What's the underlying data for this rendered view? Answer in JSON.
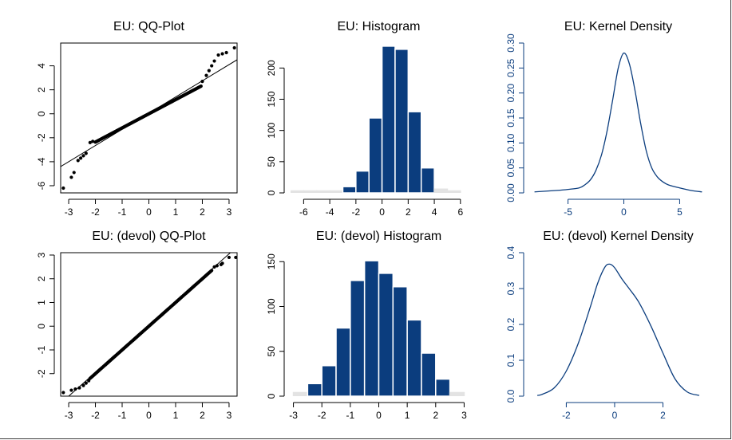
{
  "colors": {
    "navy": "#0b3d7e",
    "black": "#000000",
    "tail_bar": "#e3e3e3"
  },
  "chart_data": [
    {
      "id": "qq1",
      "type": "scatter",
      "title": "EU: QQ-Plot",
      "xlim": [
        -3.3,
        3.3
      ],
      "ylim": [
        -6.6,
        5.9
      ],
      "xticks": [
        -3,
        -2,
        -1,
        0,
        1,
        2,
        3
      ],
      "yticks": [
        -6,
        -4,
        -2,
        0,
        2,
        4
      ],
      "reference_line": {
        "intercept": 0.05,
        "slope": 1.35
      },
      "points": [
        [
          -3.2,
          -6.2
        ],
        [
          -2.9,
          -5.3
        ],
        [
          -2.8,
          -4.9
        ],
        [
          -2.65,
          -3.9
        ],
        [
          -2.55,
          -3.7
        ],
        [
          -2.45,
          -3.5
        ],
        [
          -2.35,
          -3.3
        ],
        [
          -2.2,
          -2.4
        ],
        [
          -2.1,
          -2.3
        ],
        [
          2.0,
          2.7
        ],
        [
          2.15,
          3.2
        ],
        [
          2.25,
          3.6
        ],
        [
          2.35,
          4.0
        ],
        [
          2.45,
          4.4
        ],
        [
          2.6,
          4.9
        ],
        [
          2.75,
          5.0
        ],
        [
          2.9,
          5.1
        ],
        [
          3.2,
          5.5
        ]
      ],
      "dense_band": {
        "from": -2.0,
        "to": 1.95,
        "intercept": 0.0,
        "slope": 1.18
      }
    },
    {
      "id": "hist1",
      "type": "bar",
      "title": "EU: Histogram",
      "xlim": [
        -7,
        6.5
      ],
      "ylim": [
        0,
        240
      ],
      "xticks": [
        -6,
        -4,
        -2,
        0,
        2,
        4,
        6
      ],
      "yticks": [
        0,
        50,
        100,
        150,
        200
      ],
      "bin_edges": [
        -7,
        -6,
        -5,
        -4,
        -3,
        -2,
        -1,
        0,
        1,
        2,
        3,
        4,
        5,
        6
      ],
      "counts": [
        0,
        0,
        0,
        1,
        10,
        35,
        120,
        235,
        230,
        130,
        40,
        6,
        1
      ],
      "tail_bins": [
        0,
        1,
        2,
        3,
        11,
        12
      ]
    },
    {
      "id": "kde1",
      "type": "line",
      "title": "EU: Kernel Density",
      "xlim": [
        -8.4,
        7.4
      ],
      "ylim": [
        0,
        0.3
      ],
      "xticks": [
        -5,
        0,
        5
      ],
      "yticks": [
        0,
        0.05,
        0.1,
        0.15,
        0.2,
        0.25,
        0.3
      ],
      "ytick_labels": [
        "0.00",
        "0.05",
        "0.10",
        "0.15",
        "0.20",
        "0.25",
        "0.30"
      ],
      "x": [
        -8,
        -6,
        -5,
        -4,
        -3.5,
        -3,
        -2.5,
        -2,
        -1.5,
        -1,
        -0.5,
        0,
        0.5,
        1,
        1.5,
        2,
        2.5,
        3,
        3.5,
        4,
        5,
        6,
        7
      ],
      "y": [
        0.002,
        0.005,
        0.007,
        0.01,
        0.016,
        0.026,
        0.045,
        0.076,
        0.124,
        0.186,
        0.25,
        0.28,
        0.258,
        0.205,
        0.14,
        0.085,
        0.05,
        0.032,
        0.022,
        0.016,
        0.01,
        0.005,
        0.002
      ]
    },
    {
      "id": "qq2",
      "type": "scatter",
      "title": "EU: (devol) QQ-Plot",
      "xlim": [
        -3.3,
        3.3
      ],
      "ylim": [
        -2.95,
        3.1
      ],
      "xticks": [
        -3,
        -2,
        -1,
        0,
        1,
        2,
        3
      ],
      "yticks": [
        -2,
        -1,
        0,
        1,
        2,
        3
      ],
      "reference_line": {
        "intercept": 0.05,
        "slope": 1.0
      },
      "points": [
        [
          -3.2,
          -2.8
        ],
        [
          -2.9,
          -2.7
        ],
        [
          -2.75,
          -2.65
        ],
        [
          -2.6,
          -2.6
        ],
        [
          -2.45,
          -2.5
        ],
        [
          -2.35,
          -2.4
        ],
        [
          -2.25,
          -2.3
        ],
        [
          2.45,
          2.5
        ],
        [
          2.55,
          2.55
        ],
        [
          2.7,
          2.6
        ],
        [
          2.75,
          2.65
        ],
        [
          3.0,
          2.9
        ],
        [
          3.25,
          2.9
        ]
      ],
      "dense_band": {
        "from": -2.2,
        "to": 2.35,
        "intercept": 0.0,
        "slope": 1.0
      }
    },
    {
      "id": "hist2",
      "type": "bar",
      "title": "EU: (devol) Histogram",
      "xlim": [
        -3.1,
        3.1
      ],
      "ylim": [
        0,
        160
      ],
      "xticks": [
        -3,
        -2,
        -1,
        0,
        1,
        2,
        3
      ],
      "yticks": [
        0,
        50,
        100,
        150
      ],
      "bin_edges": [
        -3,
        -2.5,
        -2,
        -1.5,
        -1,
        -0.5,
        0,
        0.5,
        1,
        1.5,
        2,
        2.5,
        3
      ],
      "counts": [
        4,
        14,
        34,
        76,
        129,
        151,
        137,
        122,
        85,
        48,
        19,
        4
      ],
      "tail_bins": [
        0,
        11
      ]
    },
    {
      "id": "kde2",
      "type": "line",
      "title": "EU: (devol) Kernel Density",
      "xlim": [
        -3.5,
        3.8
      ],
      "ylim": [
        0,
        0.4
      ],
      "xticks": [
        -2,
        0,
        2
      ],
      "yticks": [
        0,
        0.1,
        0.2,
        0.3,
        0.4
      ],
      "ytick_labels": [
        "0.0",
        "0.1",
        "0.2",
        "0.3",
        "0.4"
      ],
      "x": [
        -3.2,
        -3,
        -2.5,
        -2,
        -1.5,
        -1,
        -0.7,
        -0.4,
        -0.2,
        0,
        0.3,
        0.6,
        1,
        1.5,
        2,
        2.5,
        3,
        3.5
      ],
      "y": [
        0.002,
        0.005,
        0.023,
        0.07,
        0.148,
        0.25,
        0.315,
        0.36,
        0.368,
        0.358,
        0.327,
        0.3,
        0.262,
        0.196,
        0.12,
        0.048,
        0.012,
        0.002
      ]
    }
  ]
}
